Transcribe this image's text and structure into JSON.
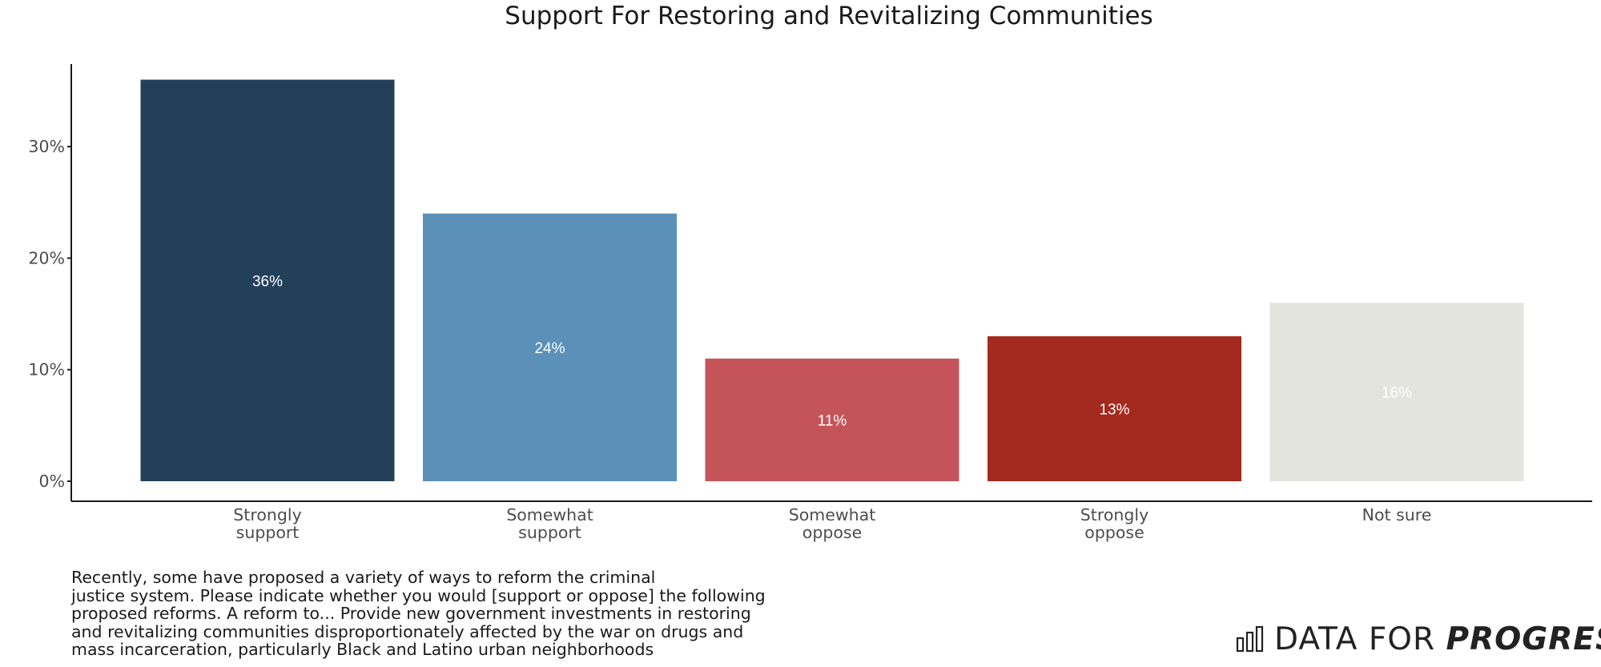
{
  "chart_data": {
    "type": "bar",
    "title": "Support For Restoring and Revitalizing Communities",
    "categories": [
      [
        "Strongly",
        "support"
      ],
      [
        "Somewhat",
        "support"
      ],
      [
        "Somewhat",
        "oppose"
      ],
      [
        "Strongly",
        "oppose"
      ],
      [
        "Not sure"
      ]
    ],
    "values": [
      36,
      24,
      11,
      13,
      16
    ],
    "data_labels": [
      "36%",
      "24%",
      "11%",
      "13%",
      "16%"
    ],
    "colors": [
      "#23405a",
      "#5b90b8",
      "#c4545a",
      "#a4291e",
      "#e4e4df"
    ],
    "label_colors": [
      "#ffffff",
      "#ffffff",
      "#ffffff",
      "#ffffff",
      "#ffffff"
    ],
    "yticks": [
      0,
      10,
      20,
      30
    ],
    "ytick_labels": [
      "0%",
      "10%",
      "20%",
      "30%"
    ],
    "ylim": [
      0,
      36
    ],
    "xlabel": "",
    "ylabel": "",
    "grid": false,
    "legend": "none"
  },
  "caption_lines": [
    "Recently, some have proposed a variety of ways to reform the criminal",
    "justice system. Please indicate whether you would [support or oppose] the following",
    "proposed reforms. A reform to... Provide new government investments in restoring",
    "and revitalizing communities disproportionately affected by the war on drugs and",
    "mass incarceration, particularly Black and Latino urban neighborhoods"
  ],
  "brand": {
    "light": "DATA FOR ",
    "bold": "PROGRESS",
    "icon": "bar-chart-logo-icon"
  }
}
